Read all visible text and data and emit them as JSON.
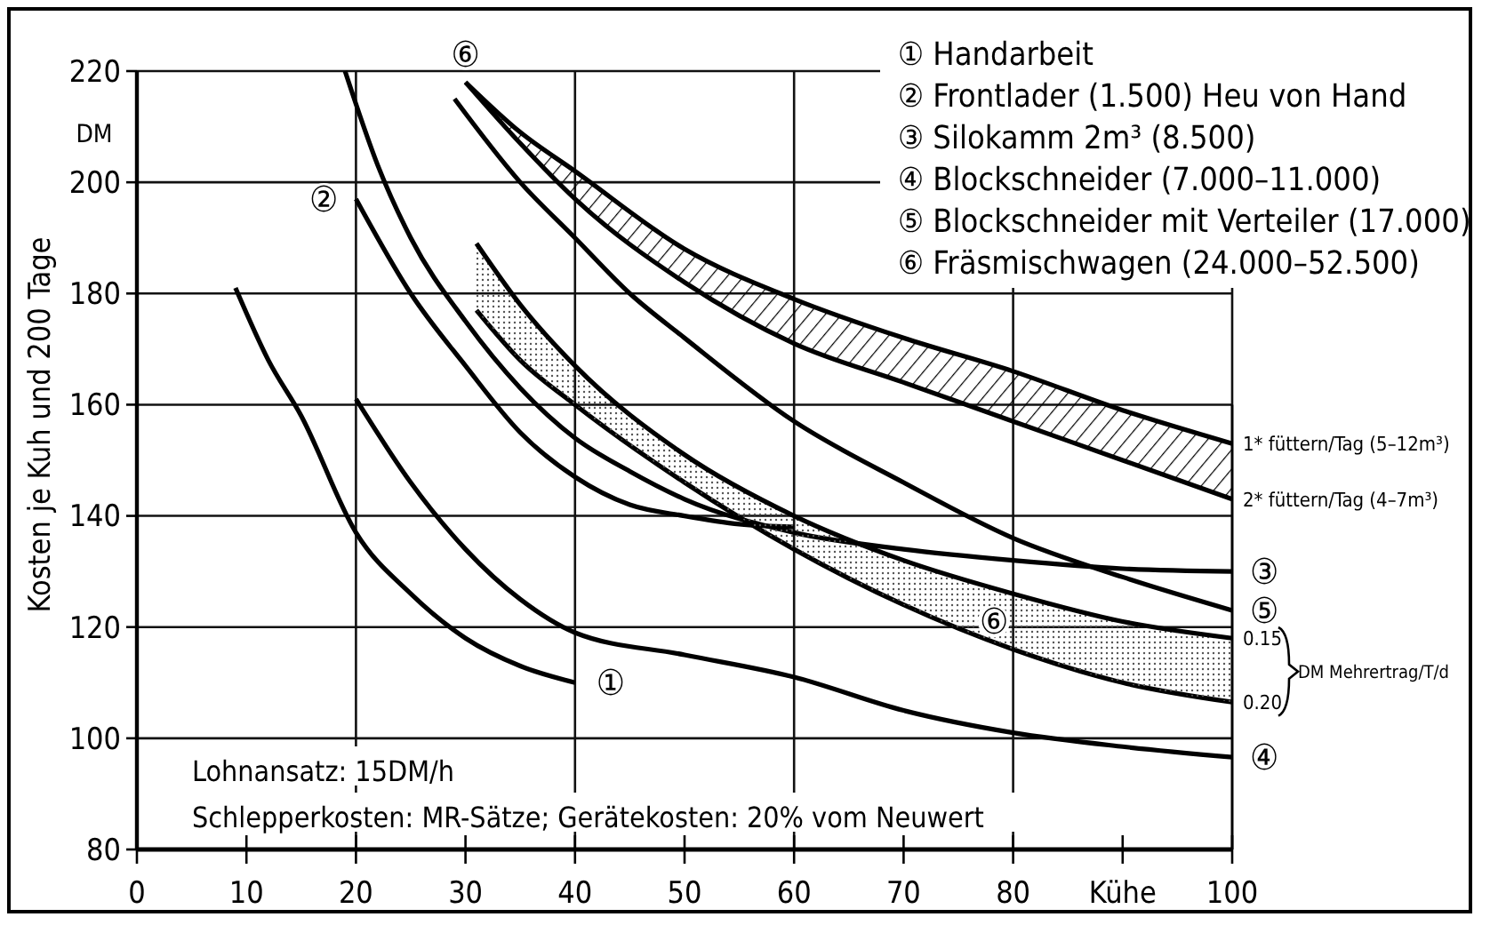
{
  "chart_data": {
    "type": "line",
    "ylabel": "Kosten je Kuh und 200 Tage",
    "xlim": [
      0,
      100
    ],
    "ylim": [
      80,
      220
    ],
    "xticks": [
      0,
      10,
      20,
      30,
      40,
      50,
      60,
      70,
      80,
      {
        "value": 90,
        "label": "Kühe"
      },
      100
    ],
    "yticks": [
      80,
      100,
      120,
      140,
      160,
      180,
      200,
      220
    ],
    "grid": true,
    "line_style": "solid",
    "marker": "none",
    "series": [
      {
        "color": "#000000",
        "x": [
          9,
          12,
          15,
          20,
          25,
          30,
          35,
          40
        ],
        "values": [
          181,
          168,
          158,
          137,
          126,
          118,
          113,
          110
        ]
      },
      {
        "color": "#000000",
        "x": [
          19,
          22,
          25,
          30,
          35,
          40,
          45,
          50,
          60,
          70,
          80,
          90,
          100
        ],
        "values": [
          220,
          203,
          190,
          175,
          163,
          154,
          148,
          143,
          137,
          134,
          132,
          130.5,
          130
        ]
      },
      {
        "color": "#000000",
        "x": [
          20,
          25,
          30,
          35,
          40,
          45,
          50,
          55,
          60
        ],
        "values": [
          197,
          180,
          167,
          155,
          147,
          142,
          140,
          138.5,
          138
        ]
      },
      {
        "color": "#000000",
        "x": [
          20,
          25,
          30,
          35,
          40,
          50,
          60,
          70,
          80,
          90,
          100
        ],
        "values": [
          161,
          146,
          134,
          125,
          119,
          115,
          111,
          105,
          101,
          98.5,
          96.6
        ]
      },
      {
        "color": "#000000",
        "x": [
          29,
          35,
          40,
          45,
          50,
          60,
          70,
          80,
          90,
          100
        ],
        "values": [
          215,
          200,
          190,
          180,
          172,
          157,
          146,
          136,
          129,
          123
        ]
      },
      {
        "color": "#000000",
        "x": [
          30,
          35,
          40,
          50,
          60,
          70,
          80,
          90,
          100
        ],
        "values": [
          218,
          209,
          202,
          188,
          179,
          172,
          166,
          159,
          153
        ],
        "lower": [
          218,
          207,
          197,
          182,
          171,
          164,
          157,
          150,
          143
        ],
        "upper": [
          218,
          209,
          202,
          188,
          179,
          172,
          166,
          159,
          153
        ]
      },
      {
        "color": "#000000",
        "x": [
          30,
          35,
          40,
          50,
          60,
          70,
          80,
          90,
          100
        ],
        "values": [
          218,
          207,
          197,
          182,
          171,
          164,
          157,
          150,
          143
        ]
      },
      {
        "color": "#000000",
        "x": [
          31,
          35,
          40,
          50,
          60,
          70,
          80,
          90,
          100
        ],
        "values": [
          177,
          168,
          160,
          146,
          134,
          124,
          116,
          110,
          106.5
        ]
      },
      {
        "color": "#000000",
        "x": [
          31,
          35,
          40,
          50,
          60,
          70,
          80,
          90,
          100
        ],
        "values": [
          189,
          178,
          167,
          151,
          140,
          132,
          126,
          121,
          118
        ],
        "lower": [
          177,
          168,
          160,
          146,
          134,
          124,
          116,
          110,
          106.5
        ],
        "upper": [
          189,
          178,
          167,
          151,
          140,
          132,
          126,
          121,
          118
        ]
      }
    ],
    "annotations": [
      "① Handarbeit",
      "② Frontlader (1.500) Heu von Hand",
      "③ Silokamm 2m³  (8.500)",
      "④ Blockschneider (7.000–11.000)",
      "⑤ Blockschneider mit Verteiler (17.000)",
      "⑥ Fräsmischwagen (24.000–52.500)",
      "DM",
      "Lohnansatz: 15DM/h",
      "Schlepperkosten: MR-Sätze; Gerätekosten: 20% vom Neuwert",
      "DM Mehrertrag/T/d",
      {
        "text": "①",
        "x": 40,
        "y": 110
      },
      {
        "text": "②",
        "x": 20,
        "y": 197
      },
      {
        "text": "⑥",
        "x": 30,
        "y": 218
      },
      {
        "text": "⑥",
        "x": 75,
        "y": 121
      },
      {
        "text": "1* füttern/Tag (5–12m³)",
        "x": 100,
        "y": 153
      },
      {
        "text": "2* füttern/Tag (4–7m³)",
        "x": 100,
        "y": 143
      },
      {
        "text": "③",
        "x": 100,
        "y": 130
      },
      {
        "text": "⑤",
        "x": 100,
        "y": 123
      },
      {
        "text": "0.15",
        "x": 100,
        "y": 118
      },
      {
        "text": "0.20",
        "x": 100,
        "y": 106.5
      },
      {
        "text": "④",
        "x": 100,
        "y": 96.6
      }
    ]
  }
}
